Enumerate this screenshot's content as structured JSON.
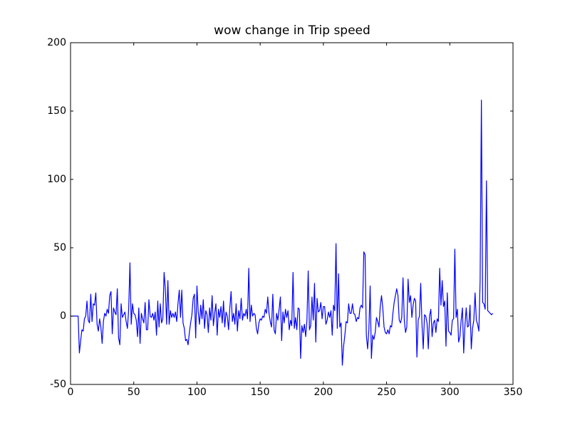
{
  "chart_data": {
    "type": "line",
    "title": "wow change in Trip speed",
    "xlim": [
      0,
      350
    ],
    "xticks": [
      0,
      50,
      100,
      150,
      200,
      250,
      300,
      350
    ],
    "ylim": [
      -50,
      200
    ],
    "yticks": [
      -50,
      0,
      50,
      100,
      150,
      200
    ],
    "x": [
      0,
      1,
      2,
      3,
      4,
      5,
      6,
      7,
      8,
      9,
      10,
      11,
      12,
      13,
      14,
      15,
      16,
      17,
      18,
      19,
      20,
      21,
      22,
      23,
      24,
      25,
      26,
      27,
      28,
      29,
      30,
      31,
      32,
      33,
      34,
      35,
      36,
      37,
      38,
      39,
      40,
      41,
      42,
      43,
      44,
      45,
      46,
      47,
      48,
      49,
      50,
      51,
      52,
      53,
      54,
      55,
      56,
      57,
      58,
      59,
      60,
      61,
      62,
      63,
      64,
      65,
      66,
      67,
      68,
      69,
      70,
      71,
      72,
      73,
      74,
      75,
      76,
      77,
      78,
      79,
      80,
      81,
      82,
      83,
      84,
      85,
      86,
      87,
      88,
      89,
      90,
      91,
      92,
      93,
      94,
      95,
      96,
      97,
      98,
      99,
      100,
      101,
      102,
      103,
      104,
      105,
      106,
      107,
      108,
      109,
      110,
      111,
      112,
      113,
      114,
      115,
      116,
      117,
      118,
      119,
      120,
      121,
      122,
      123,
      124,
      125,
      126,
      127,
      128,
      129,
      130,
      131,
      132,
      133,
      134,
      135,
      136,
      137,
      138,
      139,
      140,
      141,
      142,
      143,
      144,
      145,
      146,
      147,
      148,
      149,
      150,
      151,
      152,
      153,
      154,
      155,
      156,
      157,
      158,
      159,
      160,
      161,
      162,
      163,
      164,
      165,
      166,
      167,
      168,
      169,
      170,
      171,
      172,
      173,
      174,
      175,
      176,
      177,
      178,
      179,
      180,
      181,
      182,
      183,
      184,
      185,
      186,
      187,
      188,
      189,
      190,
      191,
      192,
      193,
      194,
      195,
      196,
      197,
      198,
      199,
      200,
      201,
      202,
      203,
      204,
      205,
      206,
      207,
      208,
      209,
      210,
      211,
      212,
      213,
      214,
      215,
      216,
      217,
      218,
      219,
      220,
      221,
      222,
      223,
      224,
      225,
      226,
      227,
      228,
      229,
      230,
      231,
      232,
      233,
      234,
      235,
      236,
      237,
      238,
      239,
      240,
      241,
      242,
      243,
      244,
      245,
      246,
      247,
      248,
      249,
      250,
      251,
      252,
      253,
      254,
      255,
      256,
      257,
      258,
      259,
      260,
      261,
      262,
      263,
      264,
      265,
      266,
      267,
      268,
      269,
      270,
      271,
      272,
      273,
      274,
      275,
      276,
      277,
      278,
      279,
      280,
      281,
      282,
      283,
      284,
      285,
      286,
      287,
      288,
      289,
      290,
      291,
      292,
      293,
      294,
      295,
      296,
      297,
      298,
      299,
      300,
      301,
      302,
      303,
      304,
      305,
      306,
      307,
      308,
      309,
      310,
      311,
      312,
      313,
      314,
      315,
      316,
      317,
      318,
      319,
      320,
      321,
      322,
      323,
      324,
      325,
      326,
      327,
      328,
      329,
      330,
      331,
      332,
      333,
      334
    ],
    "series": [
      {
        "color": "#0000ff",
        "values": [
          0,
          0,
          0,
          0,
          0,
          0,
          0,
          -27,
          -18,
          -10,
          -11,
          -2,
          0,
          11,
          -3,
          -5,
          16,
          -4,
          9,
          8,
          17,
          -6,
          -11,
          -2,
          -8,
          -20,
          -4,
          2,
          0,
          5,
          2,
          15,
          18,
          -13,
          6,
          3,
          1,
          20,
          -16,
          -21,
          9,
          -1,
          1,
          3,
          -4,
          -9,
          5,
          39,
          -6,
          9,
          2,
          1,
          -3,
          -15,
          6,
          -20,
          2,
          -2,
          -5,
          10,
          -10,
          -10,
          12,
          0,
          -1,
          2,
          -3,
          3,
          -14,
          11,
          -8,
          9,
          -5,
          -2,
          32,
          20,
          -6,
          26,
          -6,
          4,
          -1,
          2,
          -1,
          3,
          -4,
          9,
          19,
          -1,
          19,
          -5,
          -9,
          -18,
          -17,
          -21,
          -12,
          -5,
          1,
          13,
          16,
          -16,
          22,
          3,
          -6,
          8,
          -2,
          12,
          -9,
          4,
          1,
          -12,
          6,
          -3,
          15,
          -7,
          2,
          9,
          -14,
          5,
          -1,
          7,
          -5,
          11,
          -8,
          3,
          0,
          -10,
          6,
          18,
          -4,
          2,
          -6,
          9,
          -11,
          4,
          -2,
          13,
          -3,
          2,
          0,
          5,
          -2,
          35,
          -4,
          8,
          0,
          2,
          1,
          -9,
          -13,
          -5,
          -2,
          -3,
          0,
          -1,
          5,
          2,
          14,
          2,
          -4,
          -8,
          16,
          -10,
          -13,
          2,
          -3,
          5,
          14,
          -18,
          3,
          -5,
          5,
          -1,
          4,
          -10,
          -3,
          -7,
          32,
          -9,
          -1,
          -10,
          6,
          5,
          -31,
          -7,
          -12,
          -6,
          -15,
          -3,
          33,
          -10,
          -7,
          14,
          -3,
          24,
          -19,
          13,
          3,
          4,
          10,
          -2,
          7,
          7,
          -6,
          -3,
          3,
          -1,
          4,
          -14,
          8,
          4,
          53,
          -9,
          31,
          -8,
          -5,
          -36,
          -22,
          -14,
          -4,
          -5,
          9,
          2,
          2,
          9,
          2,
          1,
          -4,
          -1,
          -2,
          6,
          8,
          6,
          47,
          45,
          -14,
          -24,
          -10,
          22,
          -31,
          -14,
          -17,
          -12,
          -1,
          -4,
          -8,
          7,
          15,
          6,
          -8,
          -12,
          -13,
          -10,
          -13,
          -7,
          -8,
          2,
          10,
          15,
          20,
          15,
          -3,
          -5,
          -1,
          28,
          -3,
          -12,
          -8,
          27,
          10,
          15,
          -1,
          8,
          13,
          11,
          -30,
          -3,
          0,
          24,
          -6,
          -24,
          1,
          0,
          -5,
          -24,
          0,
          5,
          -15,
          -5,
          -3,
          -12,
          -2,
          -4,
          35,
          8,
          26,
          7,
          11,
          -22,
          17,
          -11,
          -12,
          -14,
          -3,
          -2,
          49,
          -1,
          5,
          -19,
          -15,
          -3,
          6,
          -27,
          -7,
          6,
          -8,
          -7,
          8,
          -24,
          -9,
          -3,
          17,
          -3,
          -6,
          -11,
          26,
          158,
          10,
          9,
          5,
          99,
          4,
          3,
          2,
          1,
          2
        ]
      }
    ]
  }
}
